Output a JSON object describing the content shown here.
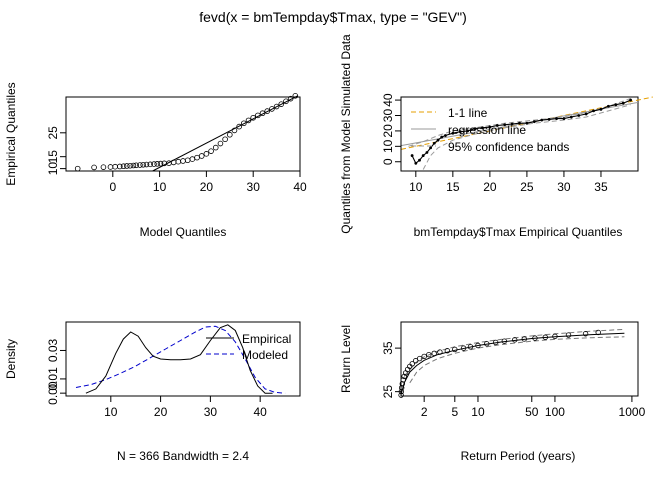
{
  "title": "fevd(x = bmTempday$Tmax, type = \"GEV\")",
  "chart_data": [
    {
      "id": "qq",
      "type": "scatter",
      "xlabel": "Model Quantiles",
      "ylabel": "Empirical Quantiles",
      "xlim": [
        -10,
        40
      ],
      "ylim": [
        9,
        40
      ],
      "xticks": [
        0,
        10,
        20,
        30,
        40
      ],
      "yticks": [
        10,
        15,
        25
      ],
      "points": [
        [
          -7.5,
          10
        ],
        [
          -4,
          10.5
        ],
        [
          -2,
          10.6
        ],
        [
          -0.5,
          10.7
        ],
        [
          0.5,
          10.8
        ],
        [
          1.5,
          10.9
        ],
        [
          2.3,
          11
        ],
        [
          3,
          11.1
        ],
        [
          3.7,
          11.2
        ],
        [
          4.4,
          11.3
        ],
        [
          5,
          11.4
        ],
        [
          5.8,
          11.5
        ],
        [
          6.5,
          11.6
        ],
        [
          7.2,
          11.7
        ],
        [
          8,
          11.8
        ],
        [
          8.8,
          11.9
        ],
        [
          9.5,
          12
        ],
        [
          10.2,
          12.1
        ],
        [
          11,
          12.2
        ],
        [
          12,
          12.3
        ],
        [
          13,
          12.6
        ],
        [
          14,
          12.9
        ],
        [
          15,
          13.2
        ],
        [
          16,
          13.5
        ],
        [
          17,
          14
        ],
        [
          18,
          14.6
        ],
        [
          19,
          15.3
        ],
        [
          20,
          16.2
        ],
        [
          21,
          17.3
        ],
        [
          22,
          18.8
        ],
        [
          23,
          20.5
        ],
        [
          24,
          22.3
        ],
        [
          25,
          24.2
        ],
        [
          26,
          26
        ],
        [
          27,
          27.6
        ],
        [
          28,
          29
        ],
        [
          29,
          30.2
        ],
        [
          30,
          31.3
        ],
        [
          31,
          32.3
        ],
        [
          32,
          33.2
        ],
        [
          33,
          34.1
        ],
        [
          34,
          35
        ],
        [
          35,
          36
        ],
        [
          36,
          37
        ],
        [
          37,
          38.2
        ],
        [
          38,
          39.3
        ],
        [
          39,
          40.5
        ]
      ],
      "line": [
        [
          8.5,
          9
        ],
        [
          39.5,
          40.5
        ]
      ]
    },
    {
      "id": "qq2",
      "type": "line",
      "xlabel": "bmTempday$Tmax Empirical Quantiles",
      "ylabel": "Quantiles from Model Simulated Data",
      "xlim": [
        8,
        40
      ],
      "ylim": [
        -6,
        42
      ],
      "xticks": [
        10,
        15,
        20,
        25,
        30,
        35
      ],
      "yticks": [
        0,
        10,
        20,
        30,
        40
      ],
      "legend": [
        "1-1 line",
        "regression line",
        "95% confidence bands"
      ],
      "legend_colors": [
        "#E69F00",
        "#9A9A9A",
        "#9A9A9A"
      ],
      "points": [
        [
          9.5,
          4
        ],
        [
          10,
          -1
        ],
        [
          10.5,
          1
        ],
        [
          11,
          4
        ],
        [
          11.5,
          6
        ],
        [
          12,
          9
        ],
        [
          12.5,
          12
        ],
        [
          13,
          14
        ],
        [
          13.5,
          16
        ],
        [
          14,
          17
        ],
        [
          15,
          18.5
        ],
        [
          16,
          19.5
        ],
        [
          17,
          20
        ],
        [
          18,
          21.5
        ],
        [
          19,
          22
        ],
        [
          20,
          22.5
        ],
        [
          21,
          23.5
        ],
        [
          22,
          24
        ],
        [
          23,
          24.5
        ],
        [
          24,
          25
        ],
        [
          25,
          25
        ],
        [
          26,
          26
        ],
        [
          27,
          27
        ],
        [
          28,
          27.5
        ],
        [
          29,
          28
        ],
        [
          30,
          28
        ],
        [
          31,
          29
        ],
        [
          32,
          30
        ],
        [
          33,
          31
        ],
        [
          34,
          33
        ],
        [
          35,
          34
        ],
        [
          36,
          36
        ],
        [
          37,
          37
        ],
        [
          38,
          38
        ],
        [
          39,
          40
        ]
      ],
      "one_to_one": [
        [
          8,
          8
        ],
        [
          42,
          42
        ]
      ],
      "regression": [
        [
          8,
          10.5
        ],
        [
          40,
          38.5
        ]
      ],
      "band_upper": [
        [
          9,
          10
        ],
        [
          11,
          13
        ],
        [
          13,
          17
        ],
        [
          15,
          20
        ],
        [
          18,
          22
        ],
        [
          22,
          25
        ],
        [
          26,
          27
        ],
        [
          30,
          29
        ],
        [
          33,
          32
        ],
        [
          36,
          36
        ],
        [
          39,
          41
        ]
      ],
      "band_lower": [
        [
          11,
          -5
        ],
        [
          12,
          4
        ],
        [
          13,
          9
        ],
        [
          15,
          14
        ],
        [
          18,
          18
        ],
        [
          22,
          22
        ],
        [
          26,
          25
        ],
        [
          30,
          27
        ],
        [
          33,
          29
        ],
        [
          36,
          33
        ],
        [
          39,
          37
        ]
      ]
    },
    {
      "id": "density",
      "type": "line",
      "xlabel": "N = 366   Bandwidth = 2.4",
      "ylabel": "Density",
      "xlim": [
        1,
        48
      ],
      "ylim": [
        -0.002,
        0.05
      ],
      "xticks": [
        10,
        20,
        30,
        40
      ],
      "yticks": [
        0.0,
        0.01,
        0.03
      ],
      "ytick_labels": [
        "0.00",
        "0.01",
        "0.03"
      ],
      "legend": [
        "Empirical",
        "Modeled"
      ],
      "empirical": [
        [
          5,
          0
        ],
        [
          7,
          0.003
        ],
        [
          9,
          0.012
        ],
        [
          11,
          0.028
        ],
        [
          12.5,
          0.038
        ],
        [
          14,
          0.043
        ],
        [
          15.5,
          0.04
        ],
        [
          17,
          0.032
        ],
        [
          18.5,
          0.026
        ],
        [
          20,
          0.024
        ],
        [
          22,
          0.0235
        ],
        [
          24,
          0.0235
        ],
        [
          26,
          0.024
        ],
        [
          28,
          0.027
        ],
        [
          30,
          0.037
        ],
        [
          32,
          0.046
        ],
        [
          33.5,
          0.048
        ],
        [
          35,
          0.044
        ],
        [
          36.5,
          0.032
        ],
        [
          38,
          0.016
        ],
        [
          39.5,
          0.005
        ],
        [
          41,
          0
        ],
        [
          42.5,
          0
        ]
      ],
      "modeled": [
        [
          3,
          0.004
        ],
        [
          6,
          0.006
        ],
        [
          9,
          0.0095
        ],
        [
          12,
          0.014
        ],
        [
          15,
          0.019
        ],
        [
          18,
          0.025
        ],
        [
          21,
          0.031
        ],
        [
          24,
          0.037
        ],
        [
          27,
          0.043
        ],
        [
          29,
          0.0465
        ],
        [
          31,
          0.047
        ],
        [
          33,
          0.044
        ],
        [
          35,
          0.036
        ],
        [
          37,
          0.024
        ],
        [
          39,
          0.011
        ],
        [
          41,
          0.003
        ],
        [
          43,
          0.0005
        ],
        [
          45,
          0
        ]
      ]
    },
    {
      "id": "return",
      "type": "line",
      "xlabel": "Return Period (years)",
      "ylabel": "Return Level",
      "xscale": "log",
      "xlim": [
        1.0,
        1200
      ],
      "ylim": [
        24,
        41
      ],
      "xticks": [
        2,
        5,
        10,
        50,
        100,
        1000
      ],
      "yticks": [
        25,
        35
      ],
      "points": [
        [
          1.003,
          24.2
        ],
        [
          1.01,
          25
        ],
        [
          1.02,
          25.9
        ],
        [
          1.04,
          26.8
        ],
        [
          1.07,
          27.7
        ],
        [
          1.1,
          28.5
        ],
        [
          1.15,
          29.3
        ],
        [
          1.22,
          30.1
        ],
        [
          1.3,
          30.8
        ],
        [
          1.4,
          31.4
        ],
        [
          1.55,
          32.1
        ],
        [
          1.75,
          32.6
        ],
        [
          2,
          33.1
        ],
        [
          2.3,
          33.5
        ],
        [
          2.7,
          33.8
        ],
        [
          3.2,
          34.1
        ],
        [
          4,
          34.4
        ],
        [
          5,
          34.7
        ],
        [
          6.5,
          35
        ],
        [
          8,
          35.3
        ],
        [
          10,
          35.6
        ],
        [
          13,
          36
        ],
        [
          17,
          36.3
        ],
        [
          22,
          36.6
        ],
        [
          30,
          36.9
        ],
        [
          40,
          37.1
        ],
        [
          55,
          37.3
        ],
        [
          75,
          37.5
        ],
        [
          100,
          37.7
        ],
        [
          150,
          38
        ],
        [
          250,
          38.3
        ],
        [
          365,
          38.6
        ]
      ],
      "fit": [
        [
          1.01,
          24.5
        ],
        [
          1.1,
          27
        ],
        [
          1.3,
          29.5
        ],
        [
          1.6,
          31
        ],
        [
          2,
          32.2
        ],
        [
          3,
          33.5
        ],
        [
          5,
          34.5
        ],
        [
          10,
          35.6
        ],
        [
          20,
          36.4
        ],
        [
          50,
          37.2
        ],
        [
          100,
          37.6
        ],
        [
          300,
          38.1
        ],
        [
          800,
          38.4
        ]
      ],
      "ci_upper": [
        [
          1.1,
          28.5
        ],
        [
          1.5,
          31.5
        ],
        [
          2,
          33
        ],
        [
          3,
          34.3
        ],
        [
          5,
          35.3
        ],
        [
          10,
          36.3
        ],
        [
          20,
          37
        ],
        [
          50,
          37.8
        ],
        [
          100,
          38.3
        ],
        [
          300,
          38.9
        ],
        [
          800,
          39.3
        ]
      ],
      "ci_lower": [
        [
          1.3,
          27
        ],
        [
          1.6,
          29.5
        ],
        [
          2,
          31
        ],
        [
          3,
          32.6
        ],
        [
          5,
          33.8
        ],
        [
          10,
          35
        ],
        [
          20,
          35.8
        ],
        [
          50,
          36.6
        ],
        [
          100,
          37
        ],
        [
          300,
          37.4
        ],
        [
          800,
          37.6
        ]
      ]
    }
  ]
}
